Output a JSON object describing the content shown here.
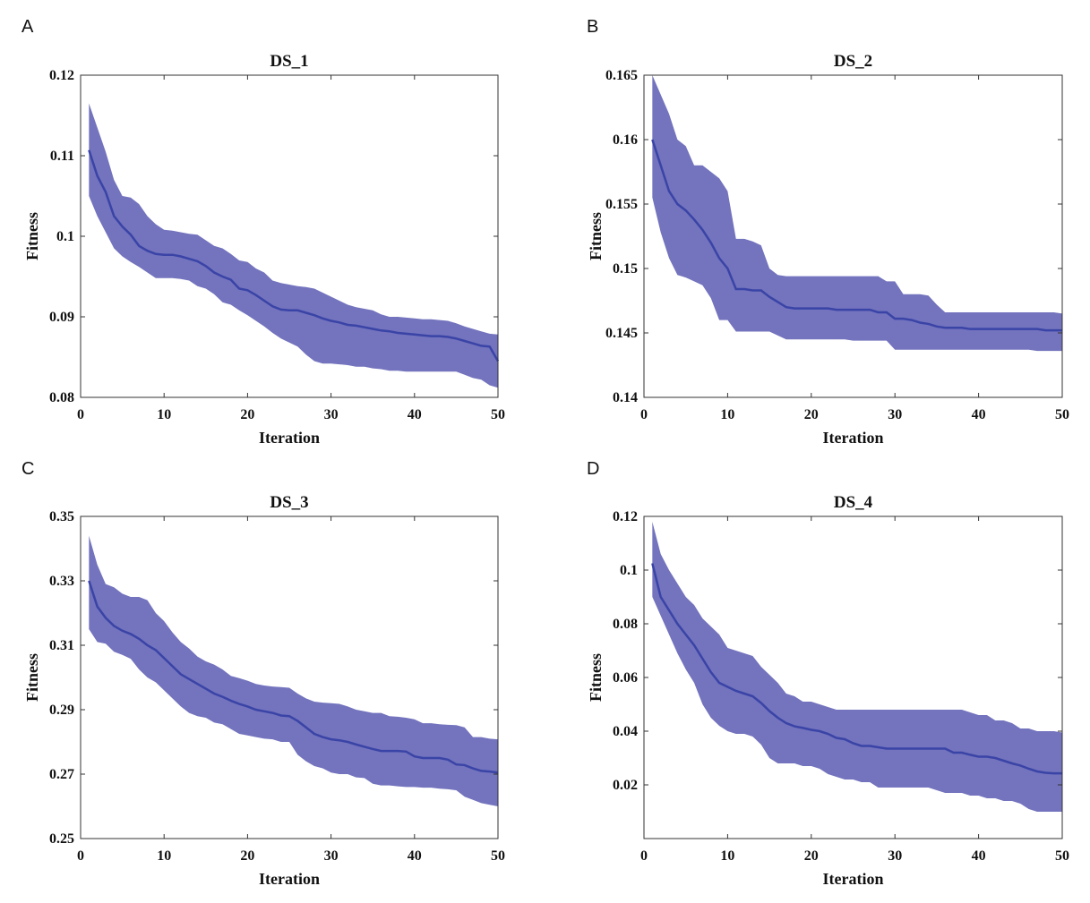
{
  "figure": {
    "band_color": "#7373be",
    "line_color": "#3a44a6"
  },
  "chart_data": [
    {
      "panel": "A",
      "type": "line",
      "title": "DS_1",
      "xlabel": "Iteration",
      "ylabel": "Fitness",
      "xlim": [
        0,
        50
      ],
      "ylim": [
        0.08,
        0.12
      ],
      "xticks": [
        0,
        10,
        20,
        30,
        40,
        50
      ],
      "xtick_labels": [
        "0",
        "10",
        "20",
        "30",
        "40",
        "50"
      ],
      "yticks": [
        0.08,
        0.09,
        0.1,
        0.11,
        0.12
      ],
      "ytick_labels": [
        "0.08",
        "0.09",
        "0.1",
        "0.11",
        "0.12"
      ],
      "grid": false,
      "x": [
        1,
        2,
        3,
        4,
        5,
        6,
        7,
        8,
        9,
        10,
        11,
        12,
        13,
        14,
        15,
        16,
        17,
        18,
        19,
        20,
        21,
        22,
        23,
        24,
        25,
        26,
        27,
        28,
        29,
        30,
        31,
        32,
        33,
        34,
        35,
        36,
        37,
        38,
        39,
        40,
        41,
        42,
        43,
        44,
        45,
        46,
        47,
        48,
        49,
        50
      ],
      "mean": [
        0.1107,
        0.1075,
        0.1055,
        0.1025,
        0.1012,
        0.1002,
        0.0988,
        0.0982,
        0.0978,
        0.0977,
        0.0977,
        0.0975,
        0.0972,
        0.0969,
        0.0963,
        0.0955,
        0.095,
        0.0946,
        0.0935,
        0.0933,
        0.0927,
        0.092,
        0.0913,
        0.0909,
        0.0908,
        0.0908,
        0.0905,
        0.0902,
        0.0898,
        0.0895,
        0.0893,
        0.089,
        0.0889,
        0.0887,
        0.0885,
        0.0883,
        0.0882,
        0.088,
        0.0879,
        0.0878,
        0.0877,
        0.0876,
        0.0876,
        0.0875,
        0.0873,
        0.087,
        0.0867,
        0.0864,
        0.0863,
        0.0845
      ],
      "upper": [
        0.1165,
        0.1135,
        0.1105,
        0.107,
        0.105,
        0.1048,
        0.104,
        0.1025,
        0.1015,
        0.1008,
        0.1007,
        0.1005,
        0.1003,
        0.1002,
        0.0995,
        0.0988,
        0.0985,
        0.0978,
        0.097,
        0.0968,
        0.096,
        0.0955,
        0.0945,
        0.0942,
        0.094,
        0.0938,
        0.0937,
        0.0935,
        0.093,
        0.0925,
        0.092,
        0.0915,
        0.0912,
        0.091,
        0.0908,
        0.0903,
        0.09,
        0.09,
        0.0899,
        0.0898,
        0.0897,
        0.0897,
        0.0896,
        0.0895,
        0.0892,
        0.0888,
        0.0885,
        0.0882,
        0.0879,
        0.0878
      ],
      "lower": [
        0.105,
        0.1025,
        0.1005,
        0.0985,
        0.0975,
        0.0968,
        0.0962,
        0.0955,
        0.0948,
        0.0948,
        0.0948,
        0.0947,
        0.0945,
        0.0938,
        0.0935,
        0.0928,
        0.0918,
        0.0915,
        0.0908,
        0.0902,
        0.0895,
        0.0888,
        0.088,
        0.0873,
        0.0868,
        0.0863,
        0.0853,
        0.0845,
        0.0842,
        0.0842,
        0.0841,
        0.084,
        0.0838,
        0.0838,
        0.0836,
        0.0835,
        0.0833,
        0.0833,
        0.0832,
        0.0832,
        0.0832,
        0.0832,
        0.0832,
        0.0832,
        0.0832,
        0.0828,
        0.0824,
        0.0822,
        0.0815,
        0.0812
      ]
    },
    {
      "panel": "B",
      "type": "line",
      "title": "DS_2",
      "xlabel": "Iteration",
      "ylabel": "Fitness",
      "xlim": [
        0,
        50
      ],
      "ylim": [
        0.14,
        0.165
      ],
      "xticks": [
        0,
        10,
        20,
        30,
        40,
        50
      ],
      "xtick_labels": [
        "0",
        "10",
        "20",
        "30",
        "40",
        "50"
      ],
      "yticks": [
        0.14,
        0.145,
        0.15,
        0.155,
        0.16,
        0.165
      ],
      "ytick_labels": [
        "0.14",
        "0.145",
        "0.15",
        "0.155",
        "0.16",
        "0.165"
      ],
      "grid": false,
      "x": [
        1,
        2,
        3,
        4,
        5,
        6,
        7,
        8,
        9,
        10,
        11,
        12,
        13,
        14,
        15,
        16,
        17,
        18,
        19,
        20,
        21,
        22,
        23,
        24,
        25,
        26,
        27,
        28,
        29,
        30,
        31,
        32,
        33,
        34,
        35,
        36,
        37,
        38,
        39,
        40,
        41,
        42,
        43,
        44,
        45,
        46,
        47,
        48,
        49,
        50
      ],
      "mean": [
        0.16,
        0.158,
        0.156,
        0.155,
        0.1545,
        0.1538,
        0.153,
        0.152,
        0.1508,
        0.15,
        0.1484,
        0.1484,
        0.1483,
        0.1483,
        0.1478,
        0.1474,
        0.147,
        0.1469,
        0.1469,
        0.1469,
        0.1469,
        0.1469,
        0.1468,
        0.1468,
        0.1468,
        0.1468,
        0.1468,
        0.1466,
        0.1466,
        0.1461,
        0.1461,
        0.146,
        0.1458,
        0.1457,
        0.1455,
        0.1454,
        0.1454,
        0.1454,
        0.1453,
        0.1453,
        0.1453,
        0.1453,
        0.1453,
        0.1453,
        0.1453,
        0.1453,
        0.1453,
        0.1452,
        0.1452,
        0.1452
      ],
      "upper": [
        0.165,
        0.1635,
        0.162,
        0.16,
        0.1595,
        0.158,
        0.158,
        0.1575,
        0.157,
        0.156,
        0.1523,
        0.1523,
        0.1521,
        0.1518,
        0.15,
        0.1495,
        0.1494,
        0.1494,
        0.1494,
        0.1494,
        0.1494,
        0.1494,
        0.1494,
        0.1494,
        0.1494,
        0.1494,
        0.1494,
        0.1494,
        0.149,
        0.149,
        0.148,
        0.148,
        0.148,
        0.1479,
        0.1472,
        0.1466,
        0.1466,
        0.1466,
        0.1466,
        0.1466,
        0.1466,
        0.1466,
        0.1466,
        0.1466,
        0.1466,
        0.1466,
        0.1466,
        0.1466,
        0.1466,
        0.1465
      ],
      "lower": [
        0.1555,
        0.1528,
        0.1508,
        0.1495,
        0.1493,
        0.149,
        0.1487,
        0.1477,
        0.146,
        0.146,
        0.1451,
        0.1451,
        0.1451,
        0.1451,
        0.1451,
        0.1448,
        0.1445,
        0.1445,
        0.1445,
        0.1445,
        0.1445,
        0.1445,
        0.1445,
        0.1445,
        0.1444,
        0.1444,
        0.1444,
        0.1444,
        0.1444,
        0.1437,
        0.1437,
        0.1437,
        0.1437,
        0.1437,
        0.1437,
        0.1437,
        0.1437,
        0.1437,
        0.1437,
        0.1437,
        0.1437,
        0.1437,
        0.1437,
        0.1437,
        0.1437,
        0.1437,
        0.1436,
        0.1436,
        0.1436,
        0.1436
      ]
    },
    {
      "panel": "C",
      "type": "line",
      "title": "DS_3",
      "xlabel": "Iteration",
      "ylabel": "Fitness",
      "xlim": [
        0,
        50
      ],
      "ylim": [
        0.25,
        0.35
      ],
      "xticks": [
        0,
        10,
        20,
        30,
        40,
        50
      ],
      "xtick_labels": [
        "0",
        "10",
        "20",
        "30",
        "40",
        "50"
      ],
      "yticks": [
        0.25,
        0.27,
        0.29,
        0.31,
        0.33,
        0.35
      ],
      "ytick_labels": [
        "0.25",
        "0.27",
        "0.29",
        "0.31",
        "0.33",
        "0.35"
      ],
      "grid": false,
      "x": [
        1,
        2,
        3,
        4,
        5,
        6,
        7,
        8,
        9,
        10,
        11,
        12,
        13,
        14,
        15,
        16,
        17,
        18,
        19,
        20,
        21,
        22,
        23,
        24,
        25,
        26,
        27,
        28,
        29,
        30,
        31,
        32,
        33,
        34,
        35,
        36,
        37,
        38,
        39,
        40,
        41,
        42,
        43,
        44,
        45,
        46,
        47,
        48,
        49,
        50
      ],
      "mean": [
        0.33,
        0.322,
        0.3185,
        0.316,
        0.3145,
        0.3135,
        0.312,
        0.31,
        0.3085,
        0.306,
        0.3035,
        0.301,
        0.2995,
        0.298,
        0.2965,
        0.295,
        0.294,
        0.2928,
        0.2918,
        0.291,
        0.29,
        0.2895,
        0.289,
        0.2882,
        0.288,
        0.2865,
        0.2845,
        0.2825,
        0.2815,
        0.2808,
        0.2805,
        0.28,
        0.2792,
        0.2785,
        0.2778,
        0.2772,
        0.2772,
        0.2772,
        0.277,
        0.2755,
        0.275,
        0.275,
        0.275,
        0.2745,
        0.273,
        0.2728,
        0.2718,
        0.271,
        0.2708,
        0.2705
      ],
      "upper": [
        0.344,
        0.335,
        0.329,
        0.328,
        0.326,
        0.325,
        0.325,
        0.324,
        0.32,
        0.3175,
        0.314,
        0.311,
        0.309,
        0.3065,
        0.305,
        0.304,
        0.3025,
        0.3005,
        0.2998,
        0.299,
        0.298,
        0.2975,
        0.2972,
        0.297,
        0.2968,
        0.295,
        0.2935,
        0.2925,
        0.2922,
        0.292,
        0.2918,
        0.291,
        0.29,
        0.2895,
        0.289,
        0.289,
        0.288,
        0.2878,
        0.2875,
        0.287,
        0.2858,
        0.2858,
        0.2855,
        0.2853,
        0.2852,
        0.2845,
        0.2815,
        0.2815,
        0.281,
        0.2808
      ],
      "lower": [
        0.315,
        0.311,
        0.3105,
        0.308,
        0.307,
        0.3058,
        0.3025,
        0.3,
        0.2985,
        0.296,
        0.2935,
        0.291,
        0.289,
        0.288,
        0.2875,
        0.286,
        0.2855,
        0.284,
        0.2825,
        0.282,
        0.2815,
        0.281,
        0.2808,
        0.28,
        0.28,
        0.276,
        0.274,
        0.2725,
        0.2718,
        0.2705,
        0.27,
        0.27,
        0.269,
        0.2688,
        0.267,
        0.2665,
        0.2665,
        0.2662,
        0.266,
        0.266,
        0.2658,
        0.2658,
        0.2655,
        0.2653,
        0.265,
        0.263,
        0.262,
        0.261,
        0.2605,
        0.26
      ]
    },
    {
      "panel": "D",
      "type": "line",
      "title": "DS_4",
      "xlabel": "Iteration",
      "ylabel": "Fitness",
      "xlim": [
        0,
        50
      ],
      "ylim": [
        0,
        0.12
      ],
      "xticks": [
        0,
        10,
        20,
        30,
        40,
        50
      ],
      "xtick_labels": [
        "0",
        "10",
        "20",
        "30",
        "40",
        "50"
      ],
      "yticks": [
        0.02,
        0.04,
        0.06,
        0.08,
        0.1,
        0.12
      ],
      "ytick_labels": [
        "0.02",
        "0.04",
        "0.06",
        "0.08",
        "0.1",
        "0.12"
      ],
      "grid": false,
      "x": [
        1,
        2,
        3,
        4,
        5,
        6,
        7,
        8,
        9,
        10,
        11,
        12,
        13,
        14,
        15,
        16,
        17,
        18,
        19,
        20,
        21,
        22,
        23,
        24,
        25,
        26,
        27,
        28,
        29,
        30,
        31,
        32,
        33,
        34,
        35,
        36,
        37,
        38,
        39,
        40,
        41,
        42,
        43,
        44,
        45,
        46,
        47,
        48,
        49,
        50
      ],
      "mean": [
        0.1025,
        0.09,
        0.085,
        0.08,
        0.076,
        0.072,
        0.067,
        0.062,
        0.058,
        0.0565,
        0.055,
        0.054,
        0.053,
        0.0505,
        0.0475,
        0.045,
        0.043,
        0.0418,
        0.0412,
        0.0405,
        0.04,
        0.039,
        0.0375,
        0.037,
        0.0355,
        0.0345,
        0.0345,
        0.034,
        0.0335,
        0.0335,
        0.0335,
        0.0335,
        0.0335,
        0.0335,
        0.0335,
        0.0335,
        0.032,
        0.032,
        0.0312,
        0.0305,
        0.0305,
        0.03,
        0.029,
        0.028,
        0.0272,
        0.026,
        0.025,
        0.0245,
        0.0243,
        0.0243
      ],
      "upper": [
        0.118,
        0.106,
        0.1,
        0.095,
        0.09,
        0.087,
        0.082,
        0.079,
        0.076,
        0.071,
        0.07,
        0.069,
        0.068,
        0.064,
        0.061,
        0.058,
        0.054,
        0.053,
        0.051,
        0.051,
        0.05,
        0.049,
        0.048,
        0.048,
        0.048,
        0.048,
        0.048,
        0.048,
        0.048,
        0.048,
        0.048,
        0.048,
        0.048,
        0.048,
        0.048,
        0.048,
        0.048,
        0.048,
        0.047,
        0.046,
        0.046,
        0.044,
        0.044,
        0.043,
        0.041,
        0.041,
        0.04,
        0.04,
        0.04,
        0.0395
      ],
      "lower": [
        0.09,
        0.083,
        0.076,
        0.069,
        0.063,
        0.058,
        0.05,
        0.045,
        0.042,
        0.04,
        0.039,
        0.039,
        0.038,
        0.035,
        0.03,
        0.028,
        0.028,
        0.028,
        0.027,
        0.027,
        0.026,
        0.024,
        0.023,
        0.022,
        0.022,
        0.021,
        0.021,
        0.019,
        0.019,
        0.019,
        0.019,
        0.019,
        0.019,
        0.019,
        0.018,
        0.017,
        0.017,
        0.017,
        0.016,
        0.016,
        0.015,
        0.015,
        0.014,
        0.014,
        0.013,
        0.011,
        0.01,
        0.01,
        0.01,
        0.01
      ]
    }
  ]
}
